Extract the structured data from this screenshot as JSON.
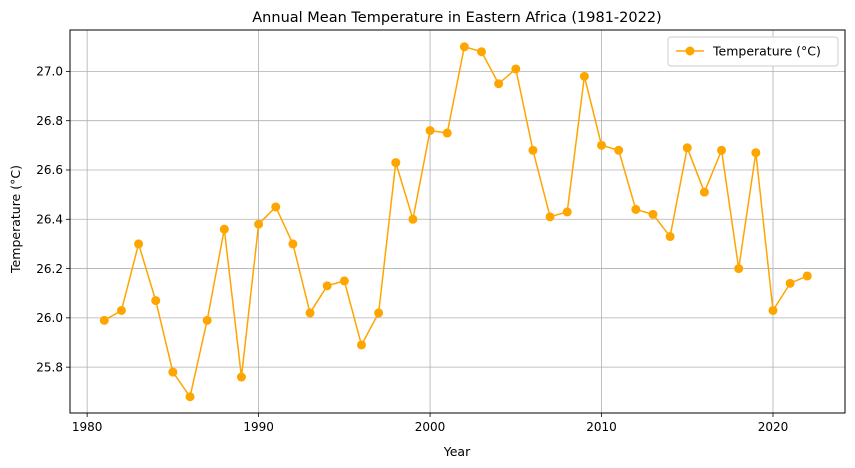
{
  "chart_data": {
    "type": "line",
    "title": "Annual Mean Temperature in Eastern Africa (1981-2022)",
    "xlabel": "Year",
    "ylabel": "Temperature (°C)",
    "xlim": [
      1979,
      2024.2
    ],
    "ylim": [
      25.614,
      27.168
    ],
    "xticks": [
      1980,
      1990,
      2000,
      2010,
      2020
    ],
    "xtick_labels": [
      "1980",
      "1990",
      "2000",
      "2010",
      "2020"
    ],
    "yticks": [
      25.8,
      26.0,
      26.2,
      26.4,
      26.6,
      26.8,
      27.0
    ],
    "ytick_labels": [
      "25.8",
      "26.0",
      "26.2",
      "26.4",
      "26.6",
      "26.8",
      "27.0"
    ],
    "grid": true,
    "legend_position": "top-right",
    "series": [
      {
        "name": "Temperature (°C)",
        "color": "#ffa500",
        "marker": "circle",
        "x": [
          1981,
          1982,
          1983,
          1984,
          1985,
          1986,
          1987,
          1988,
          1989,
          1990,
          1991,
          1992,
          1993,
          1994,
          1995,
          1996,
          1997,
          1998,
          1999,
          2000,
          2001,
          2002,
          2003,
          2004,
          2005,
          2006,
          2007,
          2008,
          2009,
          2010,
          2011,
          2012,
          2013,
          2014,
          2015,
          2016,
          2017,
          2018,
          2019,
          2020,
          2021,
          2022
        ],
        "y": [
          25.99,
          26.03,
          26.3,
          26.07,
          25.78,
          25.68,
          25.99,
          26.36,
          25.76,
          26.38,
          26.45,
          26.3,
          26.02,
          26.13,
          26.15,
          25.89,
          26.02,
          26.63,
          26.4,
          26.76,
          26.75,
          27.1,
          27.08,
          26.95,
          27.01,
          26.68,
          26.41,
          26.43,
          26.98,
          26.7,
          26.68,
          26.44,
          26.42,
          26.33,
          26.69,
          26.51,
          26.68,
          26.2,
          26.67,
          26.03,
          26.14,
          26.17
        ]
      }
    ]
  }
}
